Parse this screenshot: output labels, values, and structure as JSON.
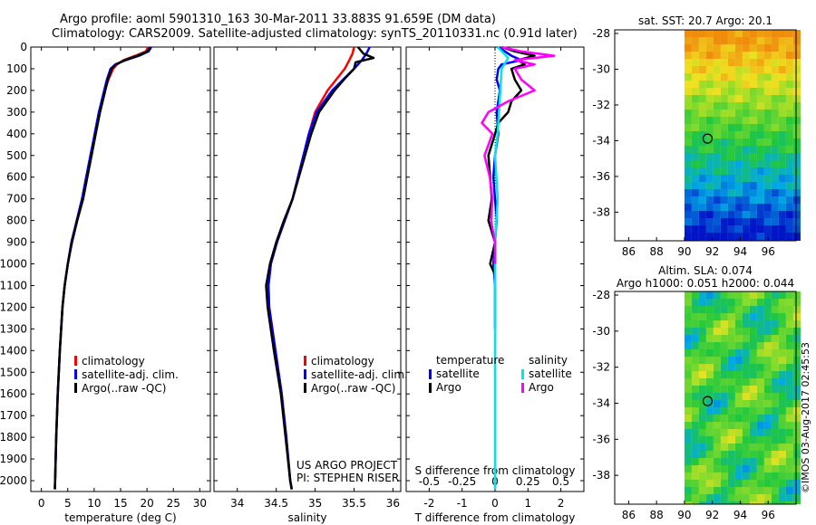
{
  "header": {
    "title_line1": "Argo profile: aoml 5901310_163 30-Mar-2011 33.883S 91.659E (DM data)",
    "title_line2": "Climatology: CARS2009. Satellite-adjusted climatology: synTS_20110331.nc (0.91d later)"
  },
  "colors": {
    "climatology": "#ff0000",
    "satellite": "#0000ff",
    "argo": "#000000",
    "sal_satellite": "#00e5ee",
    "sal_argo": "#ff00ff"
  },
  "credits": {
    "project": "US ARGO PROJECT",
    "pi": "PI: STEPHEN RISER",
    "stamp": "©IMOS 03-Aug-2017 02:45:53"
  },
  "chart_data": [
    {
      "type": "line",
      "id": "temperature",
      "xlabel": "temperature (deg C)",
      "ylabel": "",
      "xlim": [
        -2,
        32
      ],
      "ylim": [
        2050,
        0
      ],
      "xticks": [
        "0",
        "5",
        "10",
        "15",
        "20",
        "25",
        "30"
      ],
      "yticks": [
        "0",
        "100",
        "200",
        "300",
        "400",
        "500",
        "600",
        "700",
        "800",
        "900",
        "1000",
        "1100",
        "1200",
        "1300",
        "1400",
        "1500",
        "1600",
        "1700",
        "1800",
        "1900",
        "2000"
      ],
      "legend": [
        "climatology",
        "satellite-adj. clim.",
        "Argo(..raw -QC)"
      ],
      "series": [
        {
          "name": "climatology",
          "color": "#ff0000",
          "depth": [
            0,
            20,
            40,
            60,
            80,
            100,
            150,
            200,
            300,
            400,
            500,
            600,
            700,
            800,
            900,
            1000,
            1100,
            1200,
            1400,
            1600,
            1800,
            2000,
            2040
          ],
          "values": [
            20.2,
            19.8,
            17.8,
            15.6,
            14.3,
            13.6,
            12.7,
            12.0,
            10.9,
            10.1,
            9.3,
            8.5,
            7.7,
            6.7,
            5.7,
            5.0,
            4.4,
            4.0,
            3.5,
            3.1,
            2.8,
            2.6,
            2.55
          ]
        },
        {
          "name": "satellite-adj. clim.",
          "color": "#0000ff",
          "depth": [
            0,
            20,
            40,
            60,
            80,
            100,
            150,
            200,
            300,
            400,
            500,
            600,
            700,
            800,
            900,
            1000,
            1100,
            1200,
            1400,
            1600,
            1800,
            2000,
            2040
          ],
          "values": [
            20.8,
            20.3,
            18.5,
            16.0,
            14.0,
            13.1,
            12.4,
            11.9,
            10.9,
            10.1,
            9.3,
            8.5,
            7.7,
            6.7,
            5.7,
            5.0,
            4.4,
            4.0,
            3.5,
            3.1,
            2.8,
            2.6,
            2.55
          ]
        },
        {
          "name": "Argo(..raw -QC)",
          "color": "#000000",
          "depth": [
            0,
            20,
            40,
            60,
            80,
            100,
            150,
            200,
            300,
            400,
            500,
            600,
            700,
            800,
            900,
            1000,
            1100,
            1200,
            1400,
            1600,
            1800,
            2000,
            2040
          ],
          "values": [
            20.6,
            20.1,
            18.2,
            15.8,
            14.1,
            13.3,
            12.6,
            12.1,
            11.1,
            10.3,
            9.5,
            8.7,
            7.9,
            6.8,
            5.8,
            5.0,
            4.4,
            4.0,
            3.5,
            3.1,
            2.8,
            2.6,
            2.55
          ]
        }
      ]
    },
    {
      "type": "line",
      "id": "salinity",
      "xlabel": "salinity",
      "xlim": [
        33.7,
        36.1
      ],
      "ylim": [
        2050,
        0
      ],
      "xticks": [
        "34",
        "34.5",
        "35",
        "35.5",
        "36"
      ],
      "legend": [
        "climatology",
        "satellite-adj. clim.",
        "Argo(..raw -QC)"
      ],
      "series": [
        {
          "name": "climatology",
          "color": "#ff0000",
          "depth": [
            0,
            30,
            60,
            100,
            150,
            200,
            300,
            400,
            500,
            600,
            700,
            800,
            900,
            1000,
            1100,
            1200,
            1400,
            1600,
            1800,
            2000,
            2040
          ],
          "values": [
            35.5,
            35.48,
            35.44,
            35.38,
            35.27,
            35.16,
            35.0,
            34.92,
            34.85,
            34.78,
            34.71,
            34.61,
            34.51,
            34.43,
            34.4,
            34.41,
            34.49,
            34.57,
            34.63,
            34.68,
            34.7
          ]
        },
        {
          "name": "satellite-adj. clim.",
          "color": "#0000ff",
          "depth": [
            0,
            30,
            60,
            100,
            150,
            200,
            300,
            400,
            500,
            600,
            700,
            800,
            900,
            1000,
            1100,
            1200,
            1400,
            1600,
            1800,
            2000,
            2040
          ],
          "values": [
            35.7,
            35.66,
            35.6,
            35.5,
            35.36,
            35.22,
            35.02,
            34.92,
            34.85,
            34.78,
            34.71,
            34.61,
            34.51,
            34.43,
            34.4,
            34.41,
            34.49,
            34.57,
            34.63,
            34.68,
            34.7
          ]
        },
        {
          "name": "Argo(..raw -QC)",
          "color": "#000000",
          "depth": [
            0,
            30,
            50,
            70,
            100,
            150,
            200,
            300,
            400,
            500,
            600,
            700,
            800,
            900,
            1000,
            1100,
            1200,
            1400,
            1600,
            1800,
            2000,
            2040
          ],
          "values": [
            35.55,
            35.62,
            35.75,
            35.52,
            35.5,
            35.37,
            35.25,
            35.05,
            34.95,
            34.87,
            34.79,
            34.71,
            34.6,
            34.5,
            34.42,
            34.37,
            34.39,
            34.47,
            34.56,
            34.62,
            34.68,
            34.7
          ]
        }
      ]
    },
    {
      "type": "line",
      "id": "differences",
      "xlabel": "T difference from climatology",
      "xlabel_top": "S difference from climatology",
      "xlim": [
        -2.7,
        2.7
      ],
      "ylim": [
        2050,
        0
      ],
      "xticks": [
        "-2",
        "-1",
        "0",
        "1",
        "2"
      ],
      "xticks_sal": [
        "-0.5",
        "-0.25",
        "0",
        "0.25",
        "0.5"
      ],
      "legend_title_t": "temperature",
      "legend_title_s": "salinity",
      "legend_t": [
        "satellite",
        "Argo"
      ],
      "legend_s": [
        "satellite",
        "Argo"
      ],
      "series": [
        {
          "name": "temperature satellite",
          "color": "#0000ff",
          "depth": [
            0,
            20,
            40,
            60,
            80,
            100,
            150,
            200,
            300,
            400,
            500,
            600,
            700,
            800,
            900,
            1000,
            1100,
            1300
          ],
          "values": [
            0.1,
            0.3,
            0.5,
            0.8,
            0.2,
            0.1,
            0.05,
            0.15,
            0.05,
            0.1,
            0.0,
            -0.05,
            0.0,
            0.05,
            0.0,
            -0.05,
            0.0,
            0.0
          ]
        },
        {
          "name": "temperature Argo",
          "color": "#000000",
          "depth": [
            0,
            20,
            40,
            60,
            80,
            100,
            150,
            200,
            250,
            300,
            350,
            400,
            500,
            600,
            700,
            800,
            900,
            1000,
            1050
          ],
          "values": [
            0.2,
            0.6,
            1.2,
            0.7,
            0.9,
            0.5,
            0.6,
            0.8,
            0.5,
            0.4,
            0.1,
            0.0,
            -0.2,
            -0.15,
            -0.1,
            -0.2,
            0.0,
            -0.15,
            0.0
          ]
        },
        {
          "name": "salinity satellite",
          "color": "#00e5ee",
          "depth": [
            0,
            50,
            100,
            200,
            300,
            400,
            500,
            600,
            700,
            800,
            900,
            1000,
            1100,
            1200,
            1400,
            1600,
            1800,
            2000,
            2040
          ],
          "values": [
            0.02,
            0.1,
            0.05,
            0.04,
            0.03,
            0.02,
            0.0,
            0.01,
            0.02,
            0.01,
            0.0,
            0.0,
            0.0,
            0.0,
            0.0,
            0.0,
            0.0,
            0.0,
            0.0
          ]
        },
        {
          "name": "salinity Argo",
          "color": "#ff00ff",
          "depth": [
            0,
            20,
            40,
            60,
            80,
            100,
            150,
            200,
            250,
            300,
            350,
            400,
            500,
            600,
            700,
            800,
            900,
            1000
          ],
          "values": [
            0.05,
            0.2,
            0.45,
            0.15,
            0.3,
            0.15,
            0.2,
            0.3,
            0.1,
            -0.05,
            -0.1,
            -0.02,
            -0.08,
            -0.04,
            -0.02,
            -0.03,
            0.0,
            0.0
          ]
        }
      ]
    },
    {
      "type": "heatmap",
      "id": "sst_map",
      "title": "sat. SST: 20.7 Argo: 20.1",
      "xlim": [
        85,
        98
      ],
      "ylim": [
        -39.6,
        -27.8
      ],
      "xticks": [
        "86",
        "88",
        "90",
        "92",
        "94",
        "96"
      ],
      "yticks": [
        "-28",
        "-30",
        "-32",
        "-34",
        "-36",
        "-38"
      ],
      "data_lon_min": 90,
      "marker": {
        "lon": 91.659,
        "lat": -33.883
      }
    },
    {
      "type": "heatmap",
      "id": "sla_map",
      "title_line1": "Altim. SLA: 0.074",
      "title_line2": "Argo h1000: 0.051 h2000: 0.044",
      "xlim": [
        85,
        98
      ],
      "ylim": [
        -39.6,
        -27.8
      ],
      "xticks": [
        "86",
        "88",
        "90",
        "92",
        "94",
        "96"
      ],
      "yticks": [
        "-28",
        "-30",
        "-32",
        "-34",
        "-36",
        "-38"
      ],
      "data_lon_min": 90,
      "marker": {
        "lon": 91.659,
        "lat": -33.883
      }
    }
  ]
}
